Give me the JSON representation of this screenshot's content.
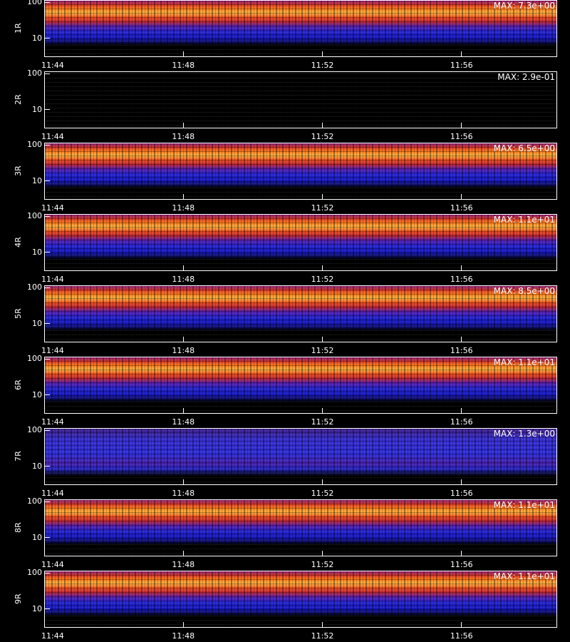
{
  "chart_data": [
    {
      "type": "heatmap",
      "ylabel": "1R",
      "annotation": "MAX: 7.3e+00",
      "yscale": "log",
      "ylim": [
        3,
        115
      ],
      "yticks": [
        10,
        100
      ],
      "xlim": [
        44,
        58.75
      ],
      "xticks": [
        {
          "value": 44,
          "label": "11:44"
        },
        {
          "value": 48,
          "label": "11:48"
        },
        {
          "value": 52,
          "label": "11:52"
        },
        {
          "value": 56,
          "label": "11:56"
        }
      ]
    },
    {
      "type": "heatmap",
      "ylabel": "2R",
      "annotation": "MAX: 2.9e-01",
      "yscale": "log",
      "ylim": [
        3,
        115
      ],
      "yticks": [
        10,
        100
      ],
      "xlim": [
        44,
        58.75
      ],
      "xticks": [
        {
          "value": 44,
          "label": "11:44"
        },
        {
          "value": 48,
          "label": "11:48"
        },
        {
          "value": 52,
          "label": "11:52"
        },
        {
          "value": 56,
          "label": "11:56"
        }
      ]
    },
    {
      "type": "heatmap",
      "ylabel": "3R",
      "annotation": "MAX: 6.5e+00",
      "yscale": "log",
      "ylim": [
        3,
        115
      ],
      "yticks": [
        10,
        100
      ],
      "xlim": [
        44,
        58.75
      ],
      "xticks": [
        {
          "value": 44,
          "label": "11:44"
        },
        {
          "value": 48,
          "label": "11:48"
        },
        {
          "value": 52,
          "label": "11:52"
        },
        {
          "value": 56,
          "label": "11:56"
        }
      ]
    },
    {
      "type": "heatmap",
      "ylabel": "4R",
      "annotation": "MAX: 1.1e+01",
      "yscale": "log",
      "ylim": [
        3,
        115
      ],
      "yticks": [
        10,
        100
      ],
      "xlim": [
        44,
        58.75
      ],
      "xticks": [
        {
          "value": 44,
          "label": "11:44"
        },
        {
          "value": 48,
          "label": "11:48"
        },
        {
          "value": 52,
          "label": "11:52"
        },
        {
          "value": 56,
          "label": "11:56"
        }
      ]
    },
    {
      "type": "heatmap",
      "ylabel": "5R",
      "annotation": "MAX: 8.5e+00",
      "yscale": "log",
      "ylim": [
        3,
        115
      ],
      "yticks": [
        10,
        100
      ],
      "xlim": [
        44,
        58.75
      ],
      "xticks": [
        {
          "value": 44,
          "label": "11:44"
        },
        {
          "value": 48,
          "label": "11:48"
        },
        {
          "value": 52,
          "label": "11:52"
        },
        {
          "value": 56,
          "label": "11:56"
        }
      ]
    },
    {
      "type": "heatmap",
      "ylabel": "6R",
      "annotation": "MAX: 1.1e+01",
      "yscale": "log",
      "ylim": [
        3,
        115
      ],
      "yticks": [
        10,
        100
      ],
      "xlim": [
        44,
        58.75
      ],
      "xticks": [
        {
          "value": 44,
          "label": "11:44"
        },
        {
          "value": 48,
          "label": "11:48"
        },
        {
          "value": 52,
          "label": "11:52"
        },
        {
          "value": 56,
          "label": "11:56"
        }
      ]
    },
    {
      "type": "heatmap",
      "ylabel": "7R",
      "annotation": "MAX: 1.3e+00",
      "yscale": "log",
      "ylim": [
        3,
        115
      ],
      "yticks": [
        10,
        100
      ],
      "xlim": [
        44,
        58.75
      ],
      "xticks": [
        {
          "value": 44,
          "label": "11:44"
        },
        {
          "value": 48,
          "label": "11:48"
        },
        {
          "value": 52,
          "label": "11:52"
        },
        {
          "value": 56,
          "label": "11:56"
        }
      ]
    },
    {
      "type": "heatmap",
      "ylabel": "8R",
      "annotation": "MAX: 1.1e+01",
      "yscale": "log",
      "ylim": [
        3,
        115
      ],
      "yticks": [
        10,
        100
      ],
      "xlim": [
        44,
        58.75
      ],
      "xticks": [
        {
          "value": 44,
          "label": "11:44"
        },
        {
          "value": 48,
          "label": "11:48"
        },
        {
          "value": 52,
          "label": "11:52"
        },
        {
          "value": 56,
          "label": "11:56"
        }
      ]
    },
    {
      "type": "heatmap",
      "ylabel": "9R",
      "annotation": "MAX: 1.1e+01",
      "yscale": "log",
      "ylim": [
        3,
        115
      ],
      "yticks": [
        10,
        100
      ],
      "xlim": [
        44,
        58.75
      ],
      "xticks": [
        {
          "value": 44,
          "label": "11:44"
        },
        {
          "value": 48,
          "label": "11:48"
        },
        {
          "value": 52,
          "label": "11:52"
        },
        {
          "value": 56,
          "label": "11:56"
        }
      ]
    }
  ]
}
